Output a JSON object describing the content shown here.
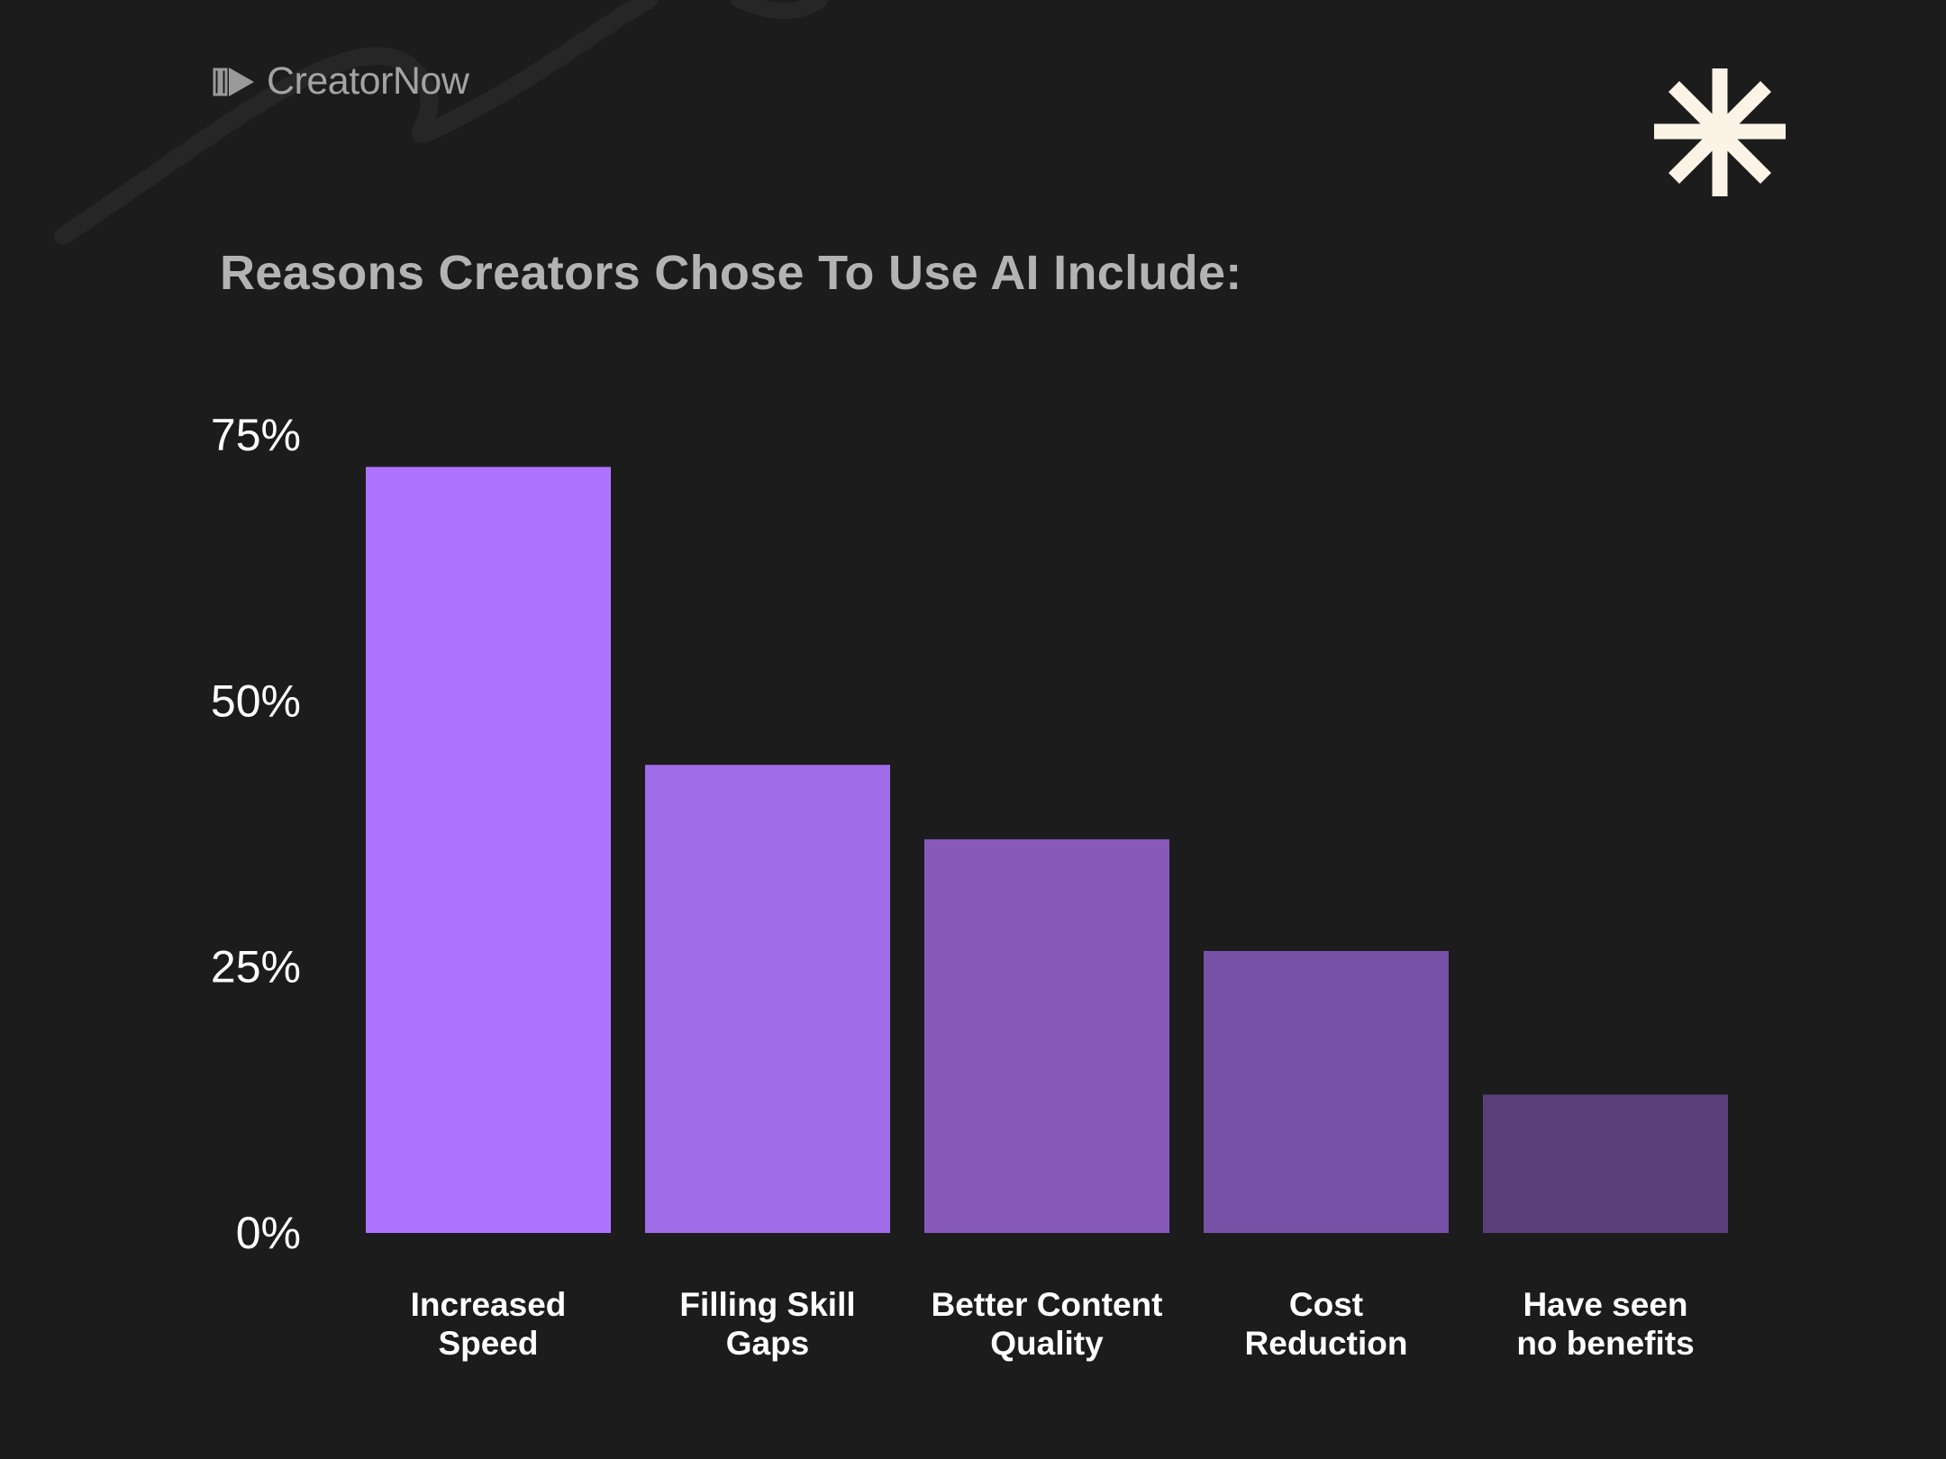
{
  "brand": {
    "name": "CreatorNow",
    "logo_icon": "play-bars-icon",
    "corner_icon": "asterisk-icon",
    "asterisk_color": "#fbf3e6",
    "background": "#1c1c1c"
  },
  "chart_data": {
    "type": "bar",
    "title": "Reasons Creators Chose To Use AI Include:",
    "categories": [
      [
        "Increased",
        "Speed"
      ],
      [
        "Filling Skill",
        "Gaps"
      ],
      [
        "Better Content",
        "Quality"
      ],
      [
        "Cost",
        "Reduction"
      ],
      [
        "Have seen",
        "no benefits"
      ]
    ],
    "values": [
      72,
      44,
      37,
      26.5,
      13
    ],
    "colors": [
      "#ae73fe",
      "#a16ce8",
      "#8659ba",
      "#7651a6",
      "#593f7a"
    ],
    "yticks": [
      0,
      25,
      50,
      75
    ],
    "ytick_labels": [
      "0%",
      "25%",
      "50%",
      "75%"
    ],
    "ylim": [
      0,
      75
    ],
    "xlabel": "",
    "ylabel": "",
    "grid": false,
    "legend": "none"
  }
}
